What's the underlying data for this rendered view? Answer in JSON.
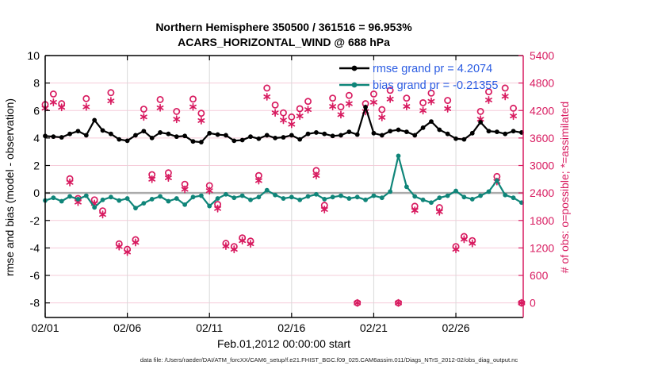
{
  "title_line1": "Northern Hemisphere 350500 / 361516 = 96.953%",
  "title_line2": "ACARS_HORIZONTAL_WIND @ 688 hPa",
  "footer": "data file: /Users/raeder/DAI/ATM_forcXX/CAM6_setup/f.e21.FHIST_BGC.f09_025.CAM6assim.011/Diags_NTrS_2012-02/obs_diag_output.nc",
  "colors": {
    "black": "#000000",
    "teal": "#0f8579",
    "pink": "#d81b60",
    "legend_text": "#2b5ce2",
    "grid_h": "#f6ccd9",
    "grid_v": "#d9d9d9",
    "zero_line": "#ababab"
  },
  "chart_data": {
    "type": "line",
    "x_axis": {
      "label": "Feb.01,2012 00:00:00 start",
      "min": 0,
      "max": 29.1,
      "tick_days": [
        0,
        5,
        10,
        15,
        20,
        25
      ],
      "tick_labels": [
        "02/01",
        "02/06",
        "02/11",
        "02/16",
        "02/21",
        "02/26"
      ]
    },
    "left_axis": {
      "label": "rmse and bias (model - observation)",
      "min": -9.06,
      "max": 10,
      "ticks": [
        10,
        8,
        6,
        4,
        2,
        0,
        -2,
        -4,
        -6,
        -8
      ],
      "zero_line": 0
    },
    "right_axis": {
      "label": "# of obs: o=possible; *=assimilated",
      "min": -318,
      "max": 5400,
      "ticks": [
        5400,
        4800,
        4200,
        3600,
        3000,
        2400,
        1800,
        1200,
        600,
        0
      ]
    },
    "legend": [
      {
        "label": "rmse grand pr = 4.2074",
        "series": "rmse"
      },
      {
        "label": "bias grand pr = -0.21355",
        "series": "bias"
      }
    ],
    "x_days": [
      0,
      0.5,
      1,
      1.5,
      2,
      2.5,
      3,
      3.5,
      4,
      4.5,
      5,
      5.5,
      6,
      6.5,
      7,
      7.5,
      8,
      8.5,
      9,
      9.5,
      10,
      10.5,
      11,
      11.5,
      12,
      12.5,
      13,
      13.5,
      14,
      14.5,
      15,
      15.5,
      16,
      16.5,
      17,
      17.5,
      18,
      18.5,
      19,
      19.5,
      20,
      20.5,
      21,
      21.5,
      22,
      22.5,
      23,
      23.5,
      24,
      24.5,
      25,
      25.5,
      26,
      26.5,
      27,
      27.5,
      28,
      28.5,
      29
    ],
    "series": [
      {
        "name": "rmse",
        "axis": "left",
        "style": "line-dot",
        "color_key": "black",
        "values": [
          4.15,
          4.1,
          4.05,
          4.3,
          4.5,
          4.2,
          5.3,
          4.55,
          4.3,
          3.9,
          3.8,
          4.2,
          4.5,
          4.0,
          4.4,
          4.3,
          4.1,
          4.15,
          3.75,
          3.7,
          4.35,
          4.25,
          4.2,
          3.8,
          3.85,
          4.1,
          3.95,
          4.2,
          4.0,
          4.05,
          4.2,
          3.9,
          4.3,
          4.4,
          4.3,
          4.15,
          4.2,
          4.45,
          4.25,
          6.25,
          4.35,
          4.2,
          4.5,
          4.6,
          4.45,
          4.2,
          4.75,
          5.2,
          4.6,
          4.3,
          3.95,
          3.9,
          4.35,
          5.15,
          4.5,
          4.45,
          4.3,
          4.5,
          4.4
        ]
      },
      {
        "name": "bias",
        "axis": "left",
        "style": "line-dot",
        "color_key": "teal",
        "values": [
          -0.55,
          -0.35,
          -0.6,
          -0.25,
          -0.45,
          -0.2,
          -1.05,
          -0.5,
          -0.3,
          -0.55,
          -0.4,
          -1.1,
          -0.75,
          -0.45,
          -0.25,
          -0.6,
          -0.4,
          -0.85,
          -0.3,
          -0.2,
          -0.95,
          -0.4,
          -0.1,
          -0.35,
          -0.2,
          -0.5,
          -0.3,
          0.2,
          -0.15,
          -0.4,
          -0.3,
          -0.5,
          -0.25,
          -0.1,
          -0.45,
          -0.3,
          -0.2,
          -0.4,
          -0.3,
          -0.5,
          -0.2,
          -0.35,
          0.1,
          2.7,
          0.45,
          -0.25,
          -0.5,
          -0.7,
          -0.35,
          -0.2,
          0.15,
          -0.3,
          -0.45,
          -0.2,
          0.1,
          0.9,
          -0.15,
          -0.35,
          -0.7
        ]
      },
      {
        "name": "possible",
        "axis": "right",
        "style": "open-circle",
        "color_key": "pink",
        "values": [
          4330,
          4560,
          4350,
          2710,
          2280,
          4460,
          2250,
          2010,
          4590,
          1290,
          1170,
          1380,
          4230,
          2800,
          4440,
          2840,
          4180,
          2590,
          4450,
          4140,
          2560,
          2150,
          1300,
          1230,
          1420,
          1350,
          2780,
          4690,
          4320,
          4150,
          4060,
          4240,
          4400,
          2890,
          2130,
          4470,
          4280,
          4530,
          0,
          4350,
          4560,
          4220,
          4640,
          0,
          4470,
          2110,
          4370,
          4580,
          2080,
          4420,
          1230,
          1450,
          1360,
          4180,
          4610,
          2760,
          4690,
          4250,
          0
        ]
      },
      {
        "name": "assimilated",
        "axis": "right",
        "style": "asterisk",
        "color_key": "pink",
        "values": [
          4250,
          4380,
          4270,
          2630,
          2200,
          4280,
          2170,
          1930,
          4410,
          1230,
          1110,
          1320,
          4060,
          2700,
          4260,
          2730,
          4010,
          2480,
          4280,
          3980,
          2450,
          2060,
          1240,
          1170,
          1360,
          1290,
          2670,
          4500,
          4150,
          3990,
          3900,
          4080,
          4220,
          2780,
          2040,
          4290,
          4110,
          4350,
          0,
          4180,
          4380,
          4050,
          4450,
          0,
          4290,
          2020,
          4200,
          4400,
          1990,
          4240,
          1170,
          1390,
          1300,
          4010,
          4430,
          2650,
          4510,
          4080,
          0
        ]
      }
    ]
  }
}
